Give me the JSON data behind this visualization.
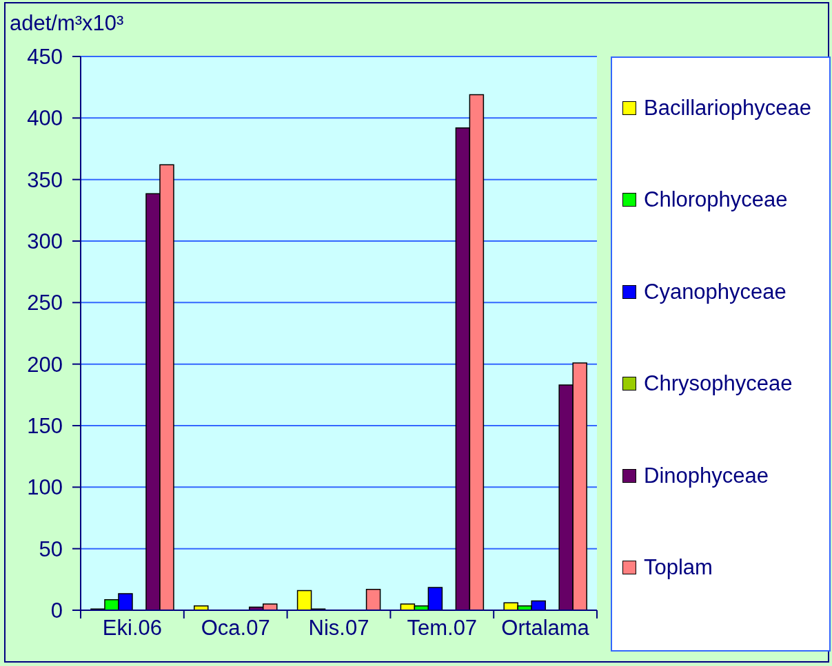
{
  "chart_data": {
    "type": "bar",
    "ylabel": "adet/m³x10³",
    "categories": [
      "Eki.06",
      "Oca.07",
      "Nis.07",
      "Tem.07",
      "Ortalama"
    ],
    "series": [
      {
        "name": "Bacillariophyceae",
        "color": "#ffff00",
        "values": [
          1,
          3.5,
          16,
          5,
          6
        ]
      },
      {
        "name": "Chlorophyceae",
        "color": "#00ff00",
        "values": [
          8.5,
          0,
          1,
          3.5,
          3.5
        ]
      },
      {
        "name": "Cyanophyceae",
        "color": "#0000ff",
        "values": [
          13.5,
          0,
          0,
          18.5,
          7.5
        ]
      },
      {
        "name": "Chrysophyceae",
        "color": "#99cc00",
        "values": [
          0,
          0,
          0,
          0,
          0
        ]
      },
      {
        "name": "Dinophyceae",
        "color": "#660066",
        "values": [
          338.5,
          2.5,
          0,
          392,
          183
        ]
      },
      {
        "name": "Toplam",
        "color": "#ff8080",
        "values": [
          362,
          5,
          17,
          419,
          201
        ]
      }
    ],
    "ylim": [
      0,
      450
    ],
    "yticks": [
      0,
      50,
      100,
      150,
      200,
      250,
      300,
      350,
      400,
      450
    ],
    "grid": "y",
    "legend": "right"
  }
}
